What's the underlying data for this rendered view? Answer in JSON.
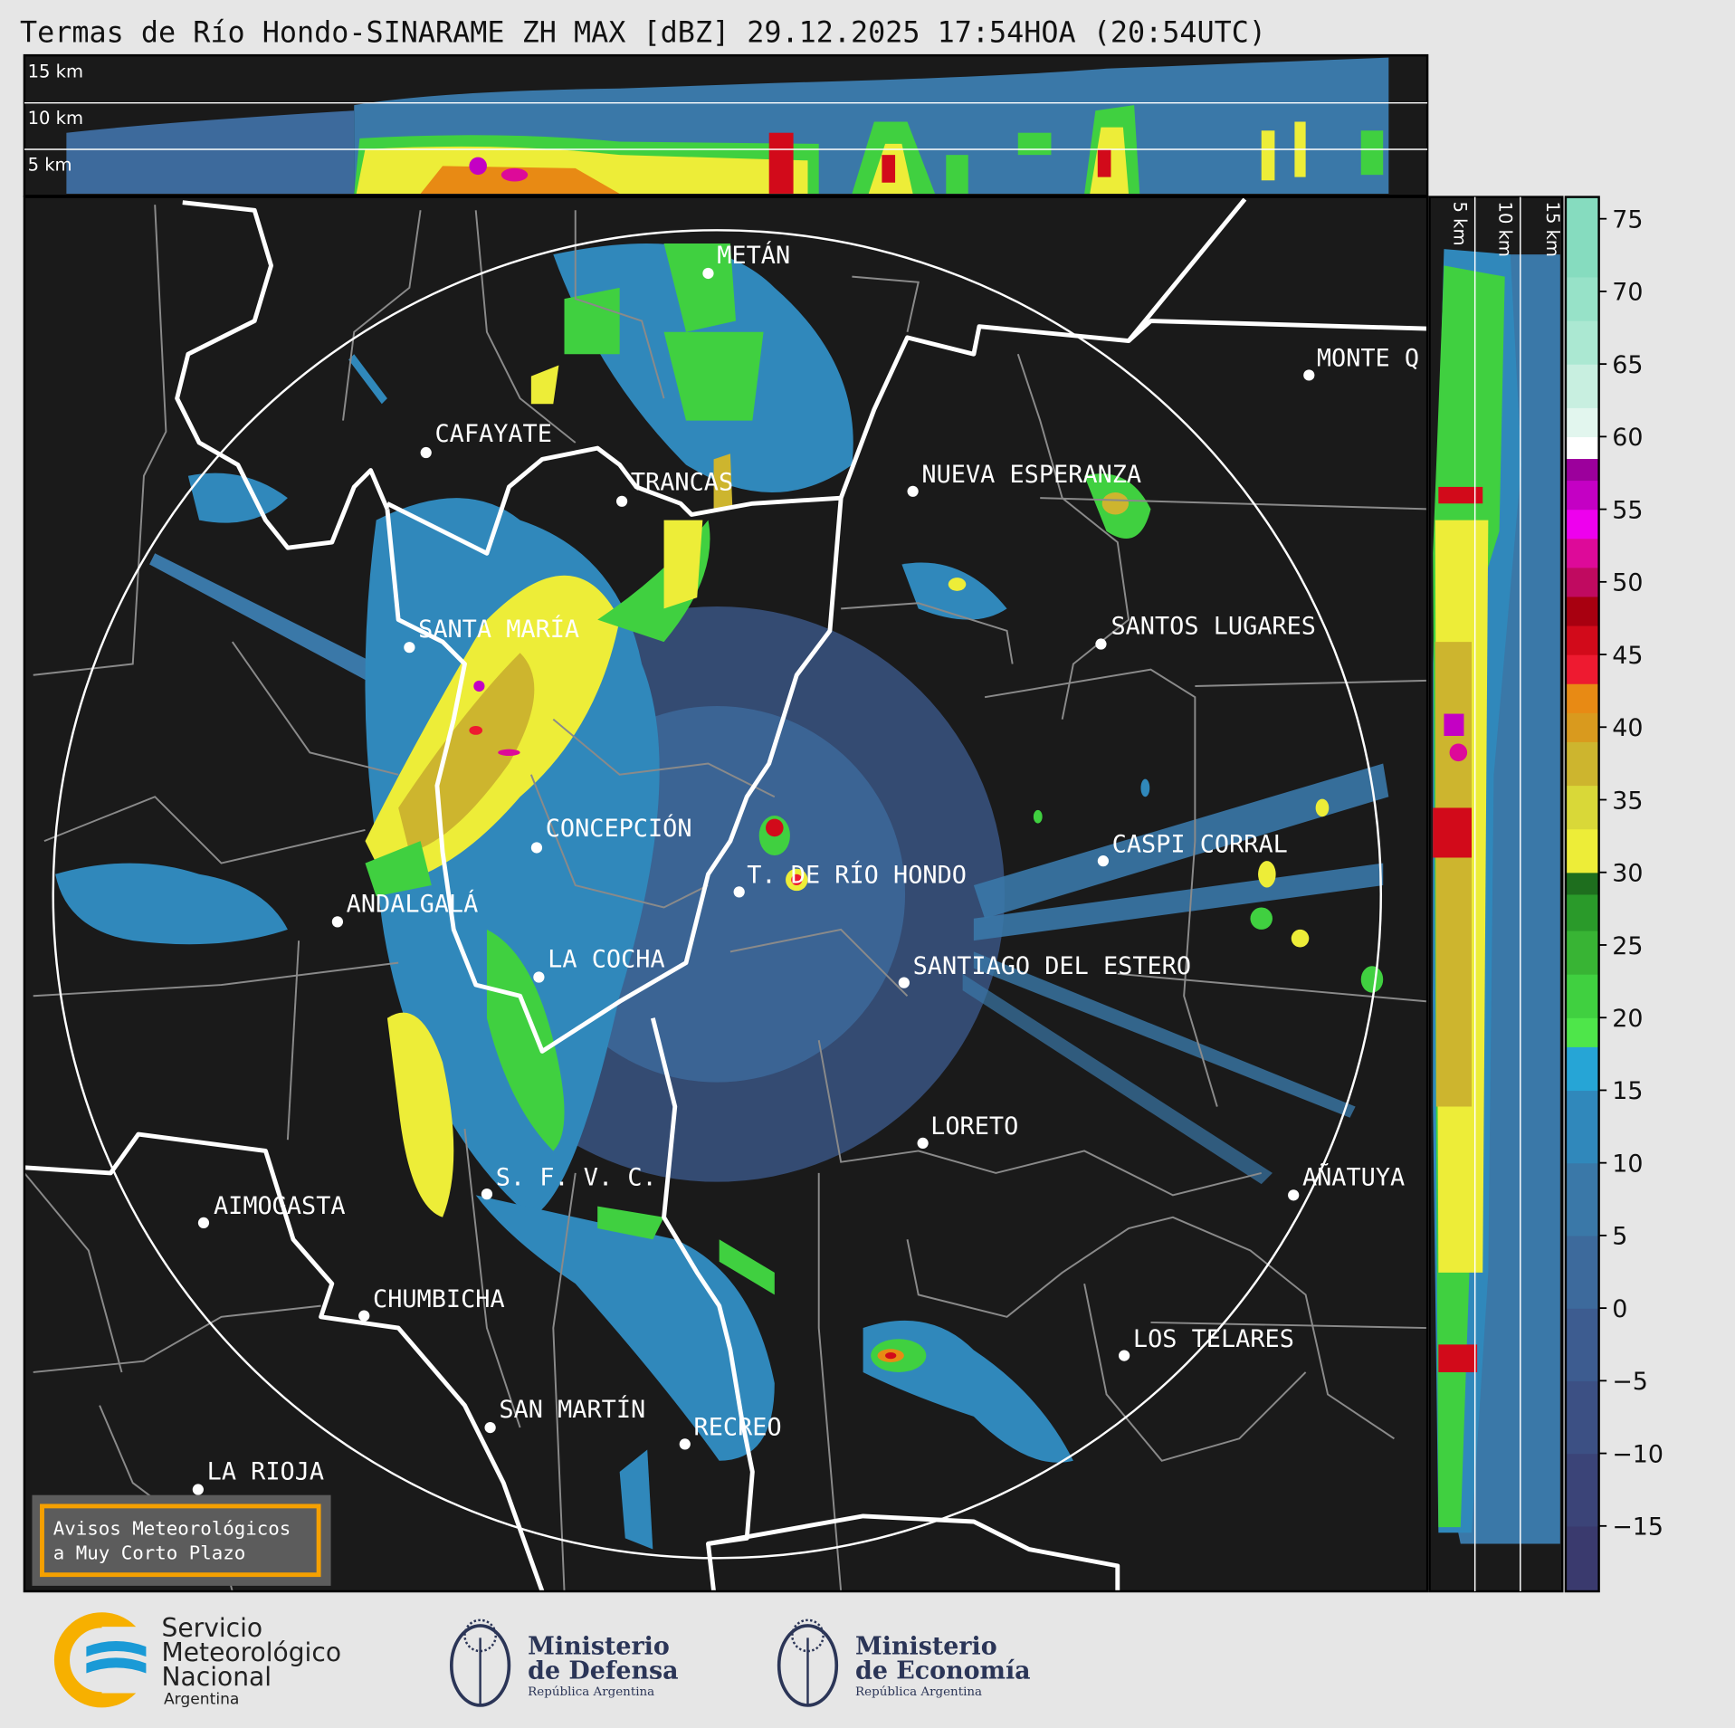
{
  "title": "Termas de Río Hondo-SINARAME ZH MAX [dBZ] 29.12.2025 17:54HOA (20:54UTC)",
  "top_section": {
    "labels": [
      "15 km",
      "10 km",
      "5 km"
    ]
  },
  "right_section": {
    "labels": [
      "5 km",
      "10 km",
      "15 km"
    ]
  },
  "cities": [
    {
      "name": "METÁN"
    },
    {
      "name": "MONTE Q"
    },
    {
      "name": "CAFAYATE"
    },
    {
      "name": "TRANCAS"
    },
    {
      "name": "NUEVA ESPERANZA"
    },
    {
      "name": "SANTA MARÍA"
    },
    {
      "name": "SANTOS LUGARES"
    },
    {
      "name": "CONCEPCIÓN"
    },
    {
      "name": "T. DE RÍO HONDO"
    },
    {
      "name": "CASPI CORRAL"
    },
    {
      "name": "ANDALGALÁ"
    },
    {
      "name": "LA COCHA"
    },
    {
      "name": "SANTIAGO DEL ESTERO"
    },
    {
      "name": "LORETO"
    },
    {
      "name": "S. F. V. C."
    },
    {
      "name": "AÑATUYA"
    },
    {
      "name": "AIMOGASTA"
    },
    {
      "name": "CHUMBICHA"
    },
    {
      "name": "LOS TELARES"
    },
    {
      "name": "SAN MARTÍN"
    },
    {
      "name": "RECREO"
    },
    {
      "name": "LA RIOJA"
    }
  ],
  "colorbar": {
    "unit": "dBZ",
    "range": [
      -19.5,
      76.5
    ],
    "ticks": [
      75,
      70,
      65,
      60,
      55,
      50,
      45,
      40,
      35,
      30,
      25,
      20,
      15,
      10,
      5,
      0,
      -5,
      -10,
      -15
    ],
    "tick_labels": [
      "75",
      "70",
      "65",
      "60",
      "55",
      "50",
      "45",
      "40",
      "35",
      "30",
      "25",
      "20",
      "15",
      "10",
      "5",
      "0",
      "−5",
      "−10",
      "−15"
    ],
    "bins": [
      {
        "from": -19.5,
        "to": -15,
        "color": "#3a3a6e"
      },
      {
        "from": -15,
        "to": -10,
        "color": "#3b4478"
      },
      {
        "from": -10,
        "to": -5,
        "color": "#3c5084"
      },
      {
        "from": -5,
        "to": 0,
        "color": "#3d5c90"
      },
      {
        "from": 0,
        "to": 5,
        "color": "#3d6a9c"
      },
      {
        "from": 5,
        "to": 10,
        "color": "#3a78a8"
      },
      {
        "from": 10,
        "to": 15,
        "color": "#3088bb"
      },
      {
        "from": 15,
        "to": 18,
        "color": "#26a5d6"
      },
      {
        "from": 18,
        "to": 20,
        "color": "#4ee64a"
      },
      {
        "from": 20,
        "to": 23,
        "color": "#40d040"
      },
      {
        "from": 23,
        "to": 26,
        "color": "#38b434"
      },
      {
        "from": 26,
        "to": 28.5,
        "color": "#2a9a2a"
      },
      {
        "from": 28.5,
        "to": 30,
        "color": "#1e6e1e"
      },
      {
        "from": 30,
        "to": 33,
        "color": "#eded38"
      },
      {
        "from": 33,
        "to": 36,
        "color": "#d9d838"
      },
      {
        "from": 36,
        "to": 39,
        "color": "#cdb52e"
      },
      {
        "from": 39,
        "to": 41,
        "color": "#d99a1e"
      },
      {
        "from": 41,
        "to": 43,
        "color": "#e88a14"
      },
      {
        "from": 43,
        "to": 45,
        "color": "#ee1a30"
      },
      {
        "from": 45,
        "to": 47,
        "color": "#d20a1a"
      },
      {
        "from": 47,
        "to": 49,
        "color": "#a80010"
      },
      {
        "from": 49,
        "to": 51,
        "color": "#c00a60"
      },
      {
        "from": 51,
        "to": 53,
        "color": "#dd0a99"
      },
      {
        "from": 53,
        "to": 55,
        "color": "#ee00ee"
      },
      {
        "from": 55,
        "to": 57,
        "color": "#c400c4"
      },
      {
        "from": 57,
        "to": 58.5,
        "color": "#9c009c"
      },
      {
        "from": 58.5,
        "to": 60,
        "color": "#ffffff"
      },
      {
        "from": 60,
        "to": 62,
        "color": "#e2f6ee"
      },
      {
        "from": 62,
        "to": 65,
        "color": "#c8efe0"
      },
      {
        "from": 65,
        "to": 68,
        "color": "#abe8d2"
      },
      {
        "from": 68,
        "to": 71,
        "color": "#97e2c8"
      },
      {
        "from": 71,
        "to": 76.5,
        "color": "#86dcbf"
      }
    ]
  },
  "warning_box": {
    "line1": "Avisos Meteorológicos",
    "line2": "a Muy Corto Plazo"
  },
  "logos": {
    "smn": {
      "line1": "Servicio",
      "line2": "Meteorológico",
      "line3": "Nacional",
      "line4": "Argentina"
    },
    "defensa": {
      "line1": "Ministerio",
      "line2": "de Defensa",
      "line3": "República Argentina"
    },
    "economia": {
      "line1": "Ministerio",
      "line2": "de Economía",
      "line3": "República Argentina"
    }
  },
  "colors": {
    "map_background": "#1a1a1a",
    "page_background": "#e6e6e6",
    "warning_border": "#f5a000",
    "smn_orange": "#f7b000",
    "smn_blue": "#1a9ad6",
    "ministry_navy": "#2b3557"
  }
}
